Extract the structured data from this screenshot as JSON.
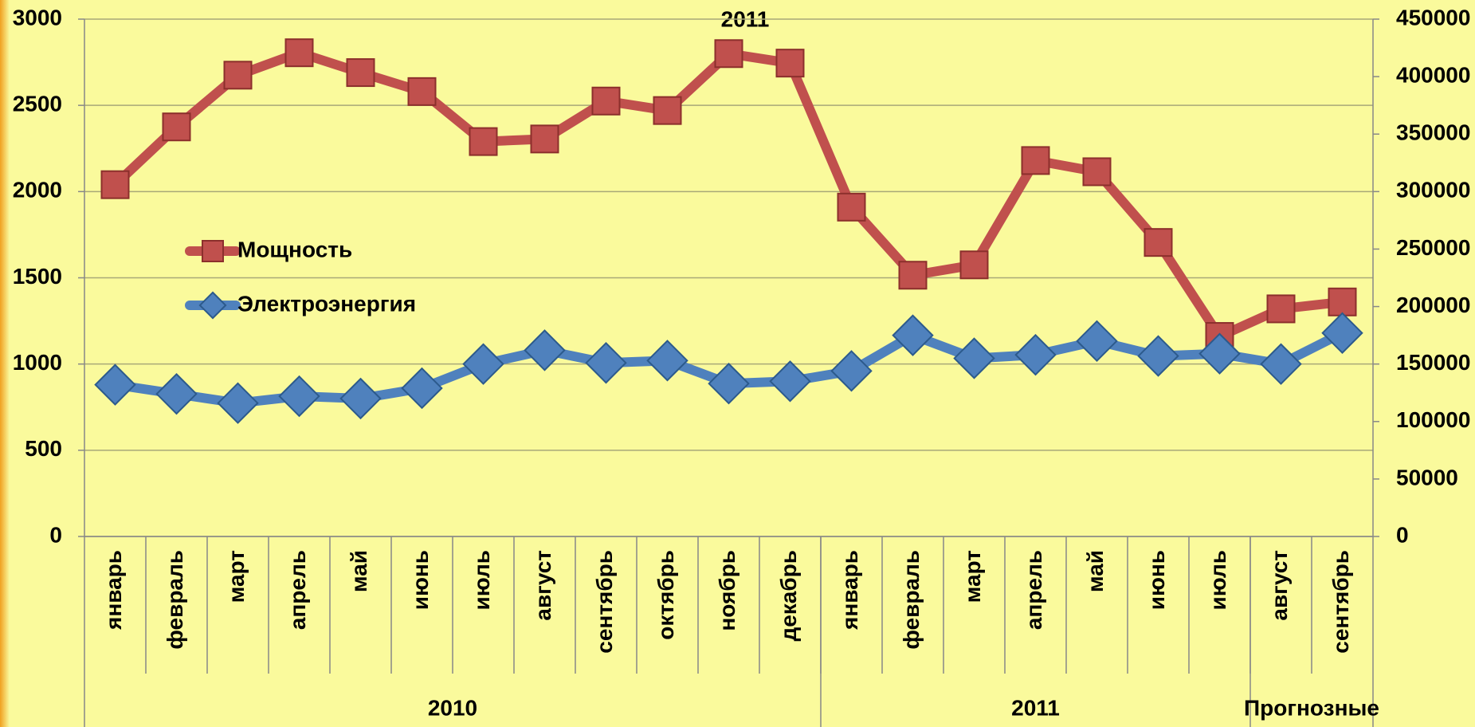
{
  "chart_data": {
    "type": "line",
    "title": "2011",
    "categories": [
      "январь",
      "февраль",
      "март",
      "апрель",
      "май",
      "июнь",
      "июль",
      "август",
      "сентябрь",
      "октябрь",
      "ноябрь",
      "декабрь",
      "январь",
      "февраль",
      "март",
      "апрель",
      "май",
      "июнь",
      "июль",
      "август",
      "сентябрь"
    ],
    "category_groups": [
      {
        "label": "2010",
        "count": 12
      },
      {
        "label": "2011",
        "count": 7
      },
      {
        "label": "Прогнозные",
        "count": 2
      }
    ],
    "series": [
      {
        "name": "Мощность",
        "color": "#c0504d",
        "marker": "square",
        "values": [
          2040,
          2375,
          2675,
          2805,
          2690,
          2580,
          2290,
          2305,
          2525,
          2470,
          2800,
          2745,
          1910,
          1515,
          1575,
          2180,
          2115,
          1705,
          1160,
          1320,
          1360
        ]
      },
      {
        "name": "Электроэнергия",
        "color": "#4f81bd",
        "marker": "diamond",
        "axis": "y2",
        "values": [
          132000,
          124000,
          116000,
          122000,
          120000,
          129000,
          150000,
          162000,
          151000,
          153000,
          133000,
          135000,
          144000,
          175000,
          155000,
          158000,
          170000,
          157000,
          159000,
          150000,
          177000
        ]
      }
    ],
    "ylim": [
      0,
      3000
    ],
    "yticks": [
      0,
      500,
      1000,
      1500,
      2000,
      2500,
      3000
    ],
    "y2lim": [
      0,
      450000
    ],
    "y2ticks": [
      0,
      50000,
      100000,
      150000,
      200000,
      250000,
      300000,
      350000,
      400000,
      450000
    ],
    "grid": true,
    "legend": "left"
  }
}
